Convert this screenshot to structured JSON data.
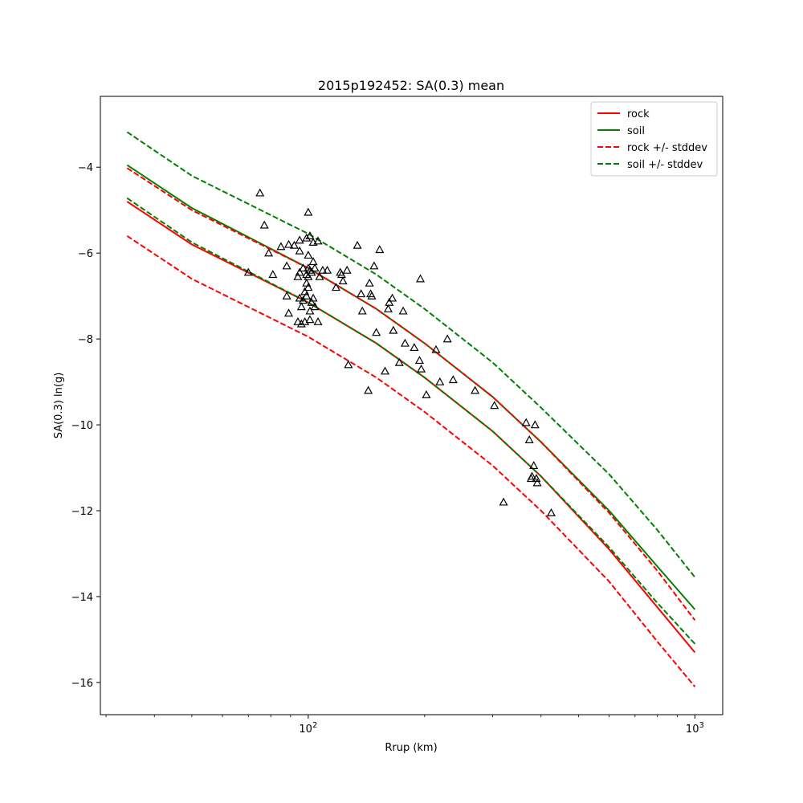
{
  "chart_data": {
    "type": "scatter",
    "title": "2015p192452: SA(0.3) mean",
    "xlabel": "Rrup (km)",
    "ylabel": "SA(0.3) ln(g)",
    "x_scale": "log",
    "xlim": [
      29,
      1180
    ],
    "ylim": [
      -16.75,
      -2.35
    ],
    "x_ticks": [
      {
        "value": 100,
        "base": "10",
        "exp": "2"
      },
      {
        "value": 1000,
        "base": "10",
        "exp": "3"
      }
    ],
    "y_ticks": [
      -16,
      -14,
      -12,
      -10,
      -8,
      -6,
      -4
    ],
    "legend_position": "upper right",
    "grid": false,
    "colors": {
      "rock": "#ff0000",
      "soil": "#008000",
      "markers": "#000000"
    },
    "series": [
      {
        "name": "rock",
        "style": "solid",
        "color": "#ff0000",
        "x": [
          34,
          50,
          100,
          150,
          200,
          300,
          400,
          600,
          800,
          1000
        ],
        "y": [
          -4.8,
          -5.8,
          -7.15,
          -8.1,
          -8.9,
          -10.15,
          -11.2,
          -12.9,
          -14.25,
          -15.3
        ]
      },
      {
        "name": "soil",
        "style": "solid",
        "color": "#008000",
        "x": [
          34,
          50,
          100,
          150,
          200,
          300,
          400,
          600,
          800,
          1000
        ],
        "y": [
          -3.95,
          -4.95,
          -6.35,
          -7.3,
          -8.1,
          -9.35,
          -10.4,
          -12.0,
          -13.3,
          -14.3
        ]
      },
      {
        "name": "rock +/- stddev",
        "style": "dashed",
        "color": "#ff0000",
        "x": [
          34,
          50,
          100,
          150,
          200,
          300,
          400,
          600,
          800,
          1000
        ],
        "y": [
          -4.02,
          -5.0,
          -6.35,
          -7.3,
          -8.1,
          -9.35,
          -10.4,
          -12.05,
          -13.4,
          -14.55
        ]
      },
      {
        "name": "",
        "style": "dashed",
        "color": "#ff0000",
        "x": [
          34,
          50,
          100,
          150,
          200,
          300,
          400,
          600,
          800,
          1000
        ],
        "y": [
          -5.6,
          -6.6,
          -7.95,
          -8.9,
          -9.7,
          -10.95,
          -12.0,
          -13.65,
          -15.05,
          -16.1
        ]
      },
      {
        "name": "soil +/- stddev",
        "style": "dashed",
        "color": "#008000",
        "x": [
          34,
          50,
          100,
          150,
          200,
          300,
          400,
          600,
          800,
          1000
        ],
        "y": [
          -3.18,
          -4.2,
          -5.55,
          -6.5,
          -7.3,
          -8.55,
          -9.6,
          -11.15,
          -12.45,
          -13.55
        ]
      },
      {
        "name": "",
        "style": "dashed",
        "color": "#008000",
        "x": [
          34,
          50,
          100,
          150,
          200,
          300,
          400,
          600,
          800,
          1000
        ],
        "y": [
          -4.72,
          -5.75,
          -7.15,
          -8.1,
          -8.9,
          -10.15,
          -11.2,
          -12.85,
          -14.15,
          -15.1
        ]
      }
    ],
    "observations": [
      [
        70,
        -6.45
      ],
      [
        75,
        -4.6
      ],
      [
        77,
        -5.35
      ],
      [
        79,
        -6.0
      ],
      [
        81,
        -6.5
      ],
      [
        85,
        -5.85
      ],
      [
        88,
        -6.3
      ],
      [
        88,
        -7.0
      ],
      [
        89,
        -5.8
      ],
      [
        89,
        -7.4
      ],
      [
        92,
        -5.82
      ],
      [
        94,
        -6.55
      ],
      [
        94,
        -7.6
      ],
      [
        95,
        -5.7
      ],
      [
        95,
        -5.95
      ],
      [
        95,
        -6.45
      ],
      [
        95,
        -7.05
      ],
      [
        96,
        -7.25
      ],
      [
        96,
        -7.65
      ],
      [
        97,
        -6.35
      ],
      [
        97,
        -7.1
      ],
      [
        98,
        -6.9
      ],
      [
        98,
        -7.6
      ],
      [
        99,
        -5.65
      ],
      [
        99,
        -6.5
      ],
      [
        99,
        -6.7
      ],
      [
        99,
        -7.0
      ],
      [
        100,
        -5.05
      ],
      [
        100,
        -6.05
      ],
      [
        100,
        -6.35
      ],
      [
        100,
        -6.55
      ],
      [
        100,
        -6.8
      ],
      [
        101,
        -5.6
      ],
      [
        101,
        -6.4
      ],
      [
        101,
        -7.35
      ],
      [
        101,
        -7.55
      ],
      [
        102,
        -6.45
      ],
      [
        102,
        -7.15
      ],
      [
        103,
        -5.75
      ],
      [
        103,
        -6.2
      ],
      [
        103,
        -7.05
      ],
      [
        104,
        -6.35
      ],
      [
        104,
        -7.25
      ],
      [
        106,
        -5.72
      ],
      [
        106,
        -7.6
      ],
      [
        107,
        -6.55
      ],
      [
        109,
        -6.4
      ],
      [
        112,
        -6.4
      ],
      [
        118,
        -6.8
      ],
      [
        121,
        -6.45
      ],
      [
        122,
        -6.5
      ],
      [
        123,
        -6.65
      ],
      [
        126,
        -6.4
      ],
      [
        127,
        -8.6
      ],
      [
        134,
        -5.82
      ],
      [
        137,
        -6.95
      ],
      [
        138,
        -7.35
      ],
      [
        143,
        -9.2
      ],
      [
        144,
        -6.7
      ],
      [
        145,
        -6.95
      ],
      [
        146,
        -7.0
      ],
      [
        148,
        -6.3
      ],
      [
        150,
        -7.85
      ],
      [
        153,
        -5.92
      ],
      [
        158,
        -8.75
      ],
      [
        161,
        -7.3
      ],
      [
        162,
        -7.15
      ],
      [
        165,
        -7.05
      ],
      [
        166,
        -7.8
      ],
      [
        172,
        -8.55
      ],
      [
        176,
        -7.35
      ],
      [
        178,
        -8.1
      ],
      [
        188,
        -8.2
      ],
      [
        194,
        -8.5
      ],
      [
        195,
        -6.6
      ],
      [
        196,
        -8.7
      ],
      [
        202,
        -9.3
      ],
      [
        214,
        -8.25
      ],
      [
        219,
        -9.0
      ],
      [
        229,
        -8.0
      ],
      [
        237,
        -8.95
      ],
      [
        270,
        -9.2
      ],
      [
        303,
        -9.55
      ],
      [
        320,
        -11.8
      ],
      [
        366,
        -9.95
      ],
      [
        373,
        -10.35
      ],
      [
        377,
        -11.25
      ],
      [
        379,
        -11.2
      ],
      [
        383,
        -10.95
      ],
      [
        386,
        -10.0
      ],
      [
        389,
        -11.25
      ],
      [
        391,
        -11.35
      ],
      [
        425,
        -12.05
      ]
    ]
  }
}
